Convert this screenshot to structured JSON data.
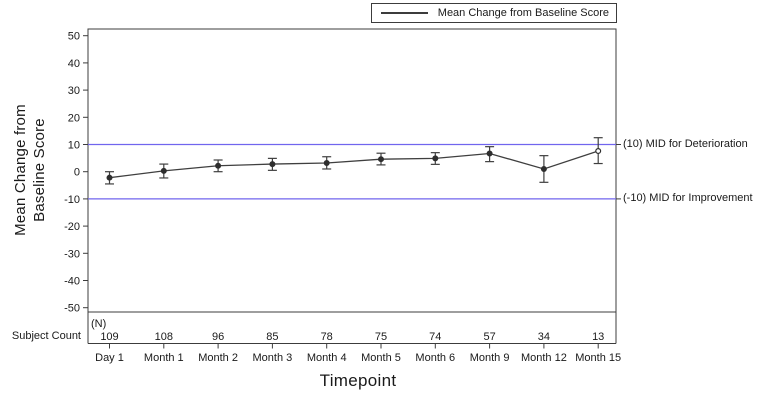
{
  "legend": {
    "label": "Mean Change from Baseline Score"
  },
  "axes": {
    "y_label_line1": "Mean Change from",
    "y_label_line2": "Baseline Score",
    "x_label": "Timepoint",
    "subject_count_label": "Subject Count",
    "n_label": "(N)"
  },
  "colors": {
    "line": "#3f3f3f",
    "marker": "#2e2e2e",
    "frame": "#3c3c3c",
    "reference": "#7165ee",
    "text": "#1a1a1a",
    "background": "#ffffff"
  },
  "chart_data": {
    "type": "line",
    "title": "",
    "xlabel": "Timepoint",
    "ylabel": "Mean Change from Baseline Score",
    "legend_position": "top-right",
    "grid": false,
    "ylim": [
      -50,
      50
    ],
    "yticks": [
      50,
      40,
      30,
      20,
      10,
      0,
      -10,
      -20,
      -30,
      -40,
      -50
    ],
    "categories": [
      "Day 1",
      "Month 1",
      "Month 2",
      "Month 3",
      "Month 4",
      "Month 5",
      "Month 6",
      "Month 9",
      "Month 12",
      "Month 15"
    ],
    "series": [
      {
        "name": "Mean Change from Baseline Score",
        "values": [
          -2.2,
          0.3,
          2.2,
          2.8,
          3.2,
          4.6,
          4.9,
          6.7,
          1.0,
          7.6
        ],
        "error_high": [
          0.0,
          2.8,
          4.3,
          4.9,
          5.5,
          6.8,
          7.0,
          9.2,
          5.9,
          12.5
        ],
        "error_low": [
          -4.5,
          -2.3,
          0.0,
          0.5,
          1.0,
          2.5,
          2.7,
          3.7,
          -3.9,
          3.0
        ]
      }
    ],
    "marker_open_indices": [
      9
    ],
    "subject_counts": [
      109,
      108,
      96,
      85,
      78,
      75,
      74,
      57,
      34,
      13
    ],
    "reference_lines": [
      {
        "y": 10,
        "label": "(10) MID for Deterioration",
        "color": "#7165ee"
      },
      {
        "y": -10,
        "label": "(-10) MID for Improvement",
        "color": "#7165ee"
      }
    ]
  }
}
